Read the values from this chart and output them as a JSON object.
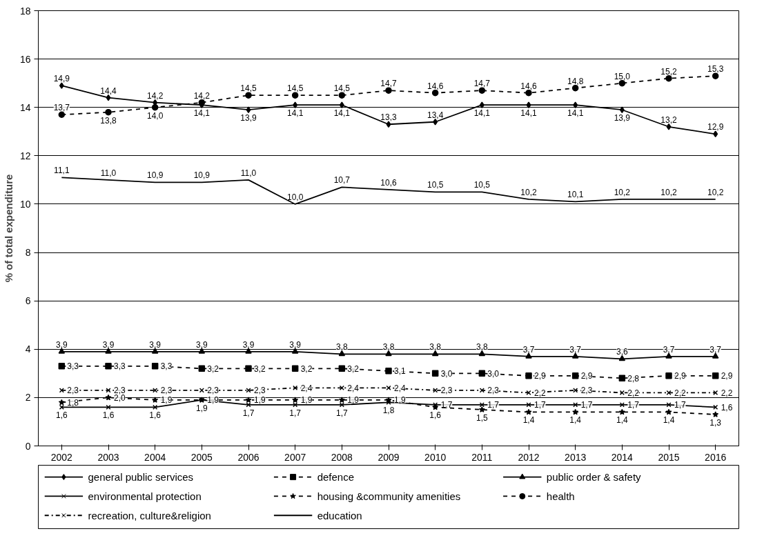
{
  "chart_data": {
    "type": "line",
    "ylabel": "% of total expenditure",
    "categories": [
      "2002",
      "2003",
      "2004",
      "2005",
      "2006",
      "2007",
      "2008",
      "2009",
      "2010",
      "2011",
      "2012",
      "2013",
      "2014",
      "2015",
      "2016"
    ],
    "ylim": [
      0,
      18
    ],
    "yticks": [
      0,
      2,
      4,
      6,
      8,
      10,
      12,
      14,
      16,
      18
    ],
    "grid": "y",
    "legend": "bottom",
    "series": [
      {
        "name": "general public services",
        "color": "#000000",
        "marker": "diamond",
        "line_style": "solid",
        "values": [
          14.9,
          14.4,
          14.2,
          14.1,
          13.9,
          14.1,
          14.1,
          13.3,
          13.4,
          14.1,
          14.1,
          14.1,
          13.9,
          13.2,
          12.9
        ],
        "value_labels": [
          "14,9",
          "14,4",
          "14,2",
          "14,1",
          "13,9",
          "14,1",
          "14,1",
          "13,3",
          "13,4",
          "14,1",
          "14,1",
          "14,1",
          "13,9",
          "13,2",
          "12,9"
        ]
      },
      {
        "name": "defence",
        "color": "#000000",
        "marker": "square",
        "line_style": "dashed",
        "values": [
          3.3,
          3.3,
          3.3,
          3.2,
          3.2,
          3.2,
          3.2,
          3.1,
          3.0,
          3.0,
          2.9,
          2.9,
          2.8,
          2.9,
          2.9
        ],
        "value_labels": [
          "3,3",
          "3,3",
          "3,3",
          "3,2",
          "3,2",
          "3,2",
          "3,2",
          "3,1",
          "3,0",
          "3,0",
          "2,9",
          "2,9",
          "2,8",
          "2,9",
          "2,9"
        ]
      },
      {
        "name": "public order  & safety",
        "color": "#000000",
        "marker": "triangle",
        "line_style": "solid",
        "values": [
          3.9,
          3.9,
          3.9,
          3.9,
          3.9,
          3.9,
          3.8,
          3.8,
          3.8,
          3.8,
          3.7,
          3.7,
          3.6,
          3.7,
          3.7
        ],
        "value_labels": [
          "3,9",
          "3,9",
          "3,9",
          "3,9",
          "3,9",
          "3,9",
          "3,8",
          "3,8",
          "3,8",
          "3,8",
          "3,7",
          "3,7",
          "3,6",
          "3,7",
          "3,7"
        ]
      },
      {
        "name": "environmental protection",
        "color": "#000000",
        "marker": "cross",
        "line_style": "solid",
        "values": [
          1.6,
          1.6,
          1.6,
          1.9,
          1.7,
          1.7,
          1.7,
          1.8,
          1.7,
          1.7,
          1.7,
          1.7,
          1.7,
          1.7,
          1.6
        ],
        "value_labels": [
          "1,6",
          "1,6",
          "1,6",
          "1,9",
          "1,7",
          "1,7",
          "1,7",
          "1,8",
          "1,7",
          "1,7",
          "1,7",
          "1,7",
          "1,7",
          "1,7",
          "1,6"
        ]
      },
      {
        "name": "housing &community amenities",
        "color": "#000000",
        "marker": "star",
        "line_style": "dashed",
        "values": [
          1.8,
          2.0,
          1.9,
          1.9,
          1.9,
          1.9,
          1.9,
          1.9,
          1.6,
          1.5,
          1.4,
          1.4,
          1.4,
          1.4,
          1.3
        ],
        "value_labels": [
          "1,8",
          "2,0",
          "1,9",
          "1,9",
          "1,9",
          "1,9",
          "1,9",
          "1,9",
          "1,6",
          "1,5",
          "1,4",
          "1,4",
          "1,4",
          "1,4",
          "1,3"
        ]
      },
      {
        "name": "health",
        "color": "#000000",
        "marker": "circle",
        "line_style": "dashed",
        "values": [
          13.7,
          13.8,
          14.0,
          14.2,
          14.5,
          14.5,
          14.5,
          14.7,
          14.6,
          14.7,
          14.6,
          14.8,
          15.0,
          15.2,
          15.3
        ],
        "value_labels": [
          "13,7",
          "13,8",
          "14,0",
          "14,2",
          "14,5",
          "14,5",
          "14,5",
          "14,7",
          "14,6",
          "14,7",
          "14,6",
          "14,8",
          "15,0",
          "15,2",
          "15,3"
        ]
      },
      {
        "name": "recreation, culture&religion",
        "color": "#000000",
        "marker": "cross",
        "line_style": "dotted",
        "values": [
          2.3,
          2.3,
          2.3,
          2.3,
          2.3,
          2.4,
          2.4,
          2.4,
          2.3,
          2.3,
          2.2,
          2.3,
          2.2,
          2.2,
          2.2
        ],
        "value_labels": [
          "2,3",
          "2,3",
          "2,3",
          "2,3",
          "2,3",
          "2,4",
          "2,4",
          "2,4",
          "2,3",
          "2,3",
          "2,2",
          "2,3",
          "2,2",
          "2,2",
          "2,2"
        ]
      },
      {
        "name": "education",
        "color": "#000000",
        "marker": "none",
        "line_style": "solid",
        "values": [
          11.1,
          11.0,
          10.9,
          10.9,
          11.0,
          10.0,
          10.7,
          10.6,
          10.5,
          10.5,
          10.2,
          10.1,
          10.2,
          10.2,
          10.2
        ],
        "value_labels": [
          "11,1",
          "11,0",
          "10,9",
          "10,9",
          "11,0",
          "10,0",
          "10,7",
          "10,6",
          "10,5",
          "10,5",
          "10,2",
          "10,1",
          "10,2",
          "10,2",
          "10,2"
        ]
      }
    ]
  }
}
